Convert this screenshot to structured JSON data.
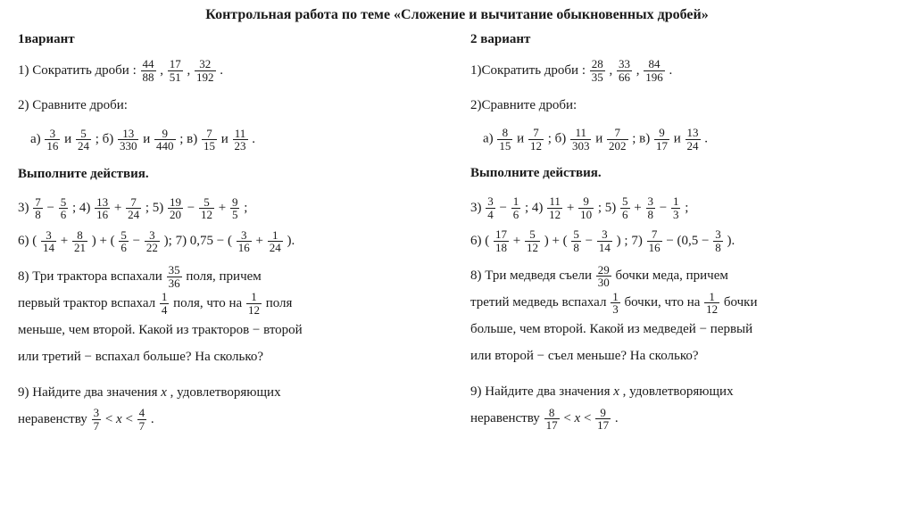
{
  "title": "Контрольная работа по теме «Сложение и вычитание обыкновенных дробей»",
  "variants": {
    "v1": {
      "label": "1вариант",
      "t1_pre": "1)    Сократить  дроби : ",
      "t1_fracs": [
        [
          "44",
          "88"
        ],
        [
          "17",
          "51"
        ],
        [
          "32",
          "192"
        ]
      ],
      "t2_pre": "2)    Сравните дроби:",
      "t2_a_pre": "а) ",
      "t2_a_f1": [
        "3",
        "16"
      ],
      "t2_a_mid": "  и  ",
      "t2_a_f2": [
        "5",
        "24"
      ],
      "t2_b_pre": " ; б) ",
      "t2_b_f1": [
        "13",
        "330"
      ],
      "t2_b_mid": "  и   ",
      "t2_b_f2": [
        "9",
        "440"
      ],
      "t2_c_pre": " ; в) ",
      "t2_c_f1": [
        "7",
        "15"
      ],
      "t2_c_mid": " и ",
      "t2_c_f2": [
        "11",
        "23"
      ],
      "t2_end": " .",
      "actions_label": "Выполните действия.",
      "t3_pre": "3)    ",
      "t3_f1": [
        "7",
        "8"
      ],
      "t3_op": "  −  ",
      "t3_f2": [
        "5",
        "6"
      ],
      "t3_end": " ;  ",
      "t4_pre": "4)  ",
      "t4_f1": [
        "13",
        "16"
      ],
      "t4_op": "  +  ",
      "t4_f2": [
        "7",
        "24"
      ],
      "t4_end": " ;  ",
      "t5_pre": "5) ",
      "t5_f1": [
        "19",
        "20"
      ],
      "t5_op1": "   −   ",
      "t5_f2": [
        "5",
        "12"
      ],
      "t5_op2": "  +  ",
      "t5_f3": [
        "9",
        "5"
      ],
      "t5_end": " ;",
      "t6_pre": "6) ( ",
      "t6_f1": [
        "3",
        "14"
      ],
      "t6_op1": " + ",
      "t6_f2": [
        "8",
        "21"
      ],
      "t6_mid": " ) + ( ",
      "t6_f3": [
        "5",
        "6"
      ],
      "t6_op2": "   −   ",
      "t6_f4": [
        "3",
        "22"
      ],
      "t6_end": " );    ",
      "t7_pre": "7)  0,75 − ( ",
      "t7_f1": [
        "3",
        "16"
      ],
      "t7_op": " + ",
      "t7_f2": [
        "1",
        "24"
      ],
      "t7_end": " ).",
      "t8_l1a": "8) Три трактора вспахали  ",
      "t8_f1": [
        "35",
        "36"
      ],
      "t8_l1b": "  поля, причем",
      "t8_l2a": "первый трактор вспахал ",
      "t8_f2": [
        "1",
        "4"
      ],
      "t8_l2b": " поля, что на  ",
      "t8_f3": [
        "1",
        "12"
      ],
      "t8_l2c": "  поля",
      "t8_l3": "меньше, чем второй. Какой из тракторов − второй",
      "t8_l4": "или третий − вспахал больше? На сколько?",
      "t9_l1a": "9) Найдите два значения  ",
      "t9_x": "x",
      "t9_l1b": " , удовлетворяющих",
      "t9_l2a": "неравенству   ",
      "t9_f1": [
        "3",
        "7"
      ],
      "t9_l2b": " <  ",
      "t9_x2": "x",
      "t9_l2c": " < ",
      "t9_f2": [
        "4",
        "7"
      ],
      "t9_end": " ."
    },
    "v2": {
      "label": "2 вариант",
      "t1_pre": "1)Сократить  дроби : ",
      "t1_fracs": [
        [
          "28",
          "35"
        ],
        [
          "33",
          "66"
        ],
        [
          "84",
          "196"
        ]
      ],
      "t2_pre": "2)Сравните дроби:",
      "t2_a_pre": "а) ",
      "t2_a_f1": [
        "8",
        "15"
      ],
      "t2_a_mid": "  и  ",
      "t2_a_f2": [
        "7",
        "12"
      ],
      "t2_b_pre": " ; б) ",
      "t2_b_f1": [
        "11",
        "303"
      ],
      "t2_b_mid": "  и   ",
      "t2_b_f2": [
        "7",
        "202"
      ],
      "t2_c_pre": " ; в) ",
      "t2_c_f1": [
        "9",
        "17"
      ],
      "t2_c_mid": "  и ",
      "t2_c_f2": [
        "13",
        "24"
      ],
      "t2_end": " .",
      "actions_label": "Выполните действия.",
      "t3_pre": "3) ",
      "t3_f1": [
        "3",
        "4"
      ],
      "t3_op": " − ",
      "t3_f2": [
        "1",
        "6"
      ],
      "t3_end": " ;  ",
      "t4_pre": "4)  ",
      "t4_f1": [
        "11",
        "12"
      ],
      "t4_op": "  +  ",
      "t4_f2": [
        "9",
        "10"
      ],
      "t4_end": " ;  ",
      "t5_pre": "5) ",
      "t5_f1": [
        "5",
        "6"
      ],
      "t5_op1": "  +  ",
      "t5_f2": [
        "3",
        "8"
      ],
      "t5_op2": " − ",
      "t5_f3": [
        "1",
        "3"
      ],
      "t5_end": " ;",
      "t6_pre": "6) ( ",
      "t6_f1": [
        "17",
        "18"
      ],
      "t6_op1": " + ",
      "t6_f2": [
        "5",
        "12"
      ],
      "t6_mid": " ) + ( ",
      "t6_f3": [
        "5",
        "8"
      ],
      "t6_op2": "   −   ",
      "t6_f4": [
        "3",
        "14"
      ],
      "t6_end": " ) ;    ",
      "t7_pre": "7)  ",
      "t7_f0": [
        "7",
        "16"
      ],
      "t7_mid": " − (0,5  −   ",
      "t7_f1": [
        "3",
        "8"
      ],
      "t7_end": " ).",
      "t8_l1a": "8) Три медведя  съели  ",
      "t8_f1": [
        "29",
        "30"
      ],
      "t8_l1b": "  бочки меда, причем",
      "t8_l2a": "третий  медведь  вспахал ",
      "t8_f2": [
        "1",
        "3"
      ],
      "t8_l2b": " бочки, что на ",
      "t8_f3": [
        "1",
        "12"
      ],
      "t8_l2c": " бочки",
      "t8_l3": "больше, чем второй. Какой из медведей − первый",
      "t8_l4": "или второй − съел меньше? На сколько?",
      "t9_l1a": "9) Найдите два значения ",
      "t9_x": "x",
      "t9_l1b": ", удовлетворяющих",
      "t9_l2a": "неравенству  ",
      "t9_f1": [
        "8",
        "17"
      ],
      "t9_l2b": " <  ",
      "t9_x2": "x",
      "t9_l2c": " < ",
      "t9_f2": [
        "9",
        "17"
      ],
      "t9_end": " ."
    }
  }
}
